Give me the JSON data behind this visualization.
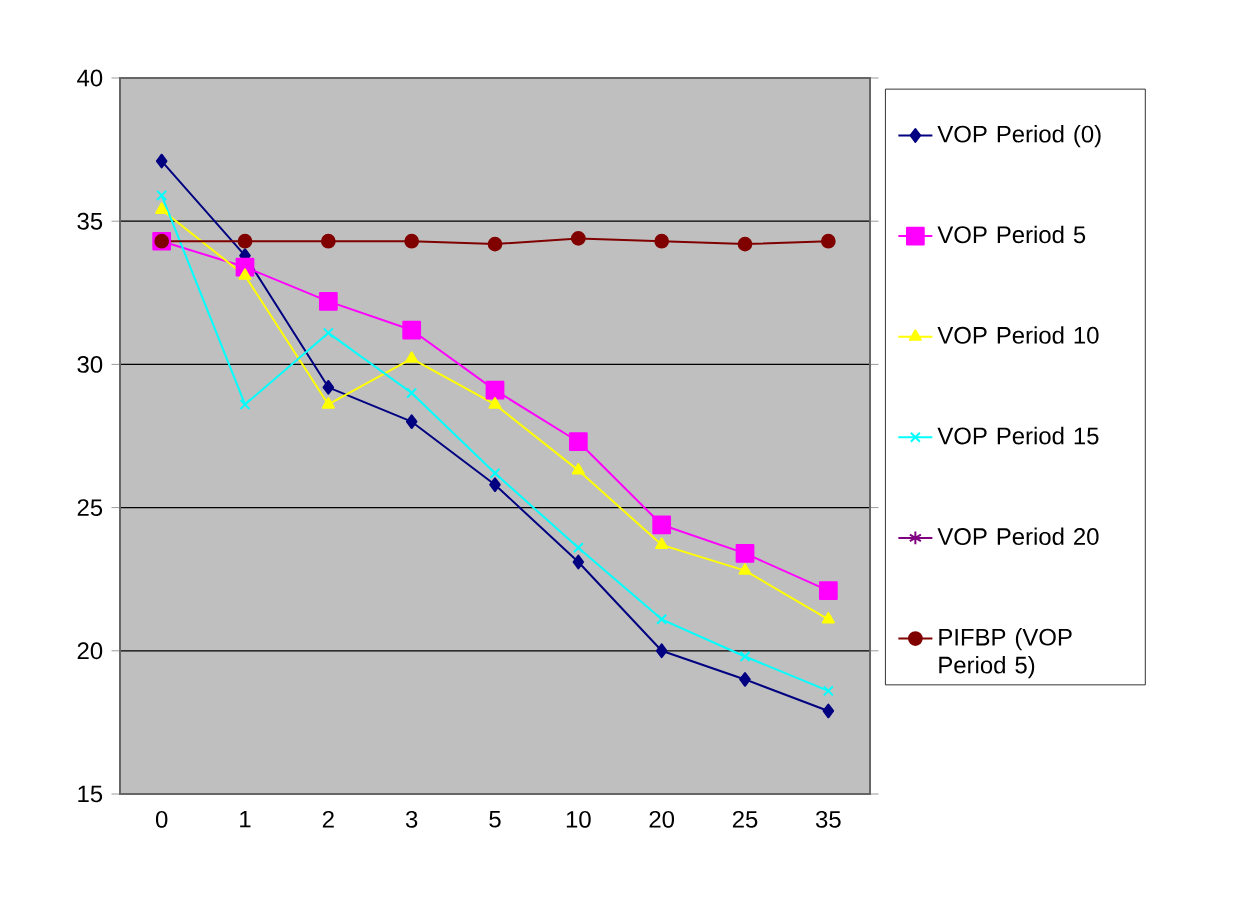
{
  "chart_data": {
    "type": "line",
    "categories": [
      "0",
      "1",
      "2",
      "3",
      "5",
      "10",
      "20",
      "25",
      "35"
    ],
    "series": [
      {
        "name": "VOP Period (0)",
        "color": "#000080",
        "marker": "diamond",
        "values": [
          37.1,
          33.8,
          29.2,
          28.0,
          25.8,
          23.1,
          20.0,
          19.0,
          17.9
        ]
      },
      {
        "name": "VOP Period 5",
        "color": "#ff00ff",
        "marker": "square",
        "values": [
          34.3,
          33.4,
          32.2,
          31.2,
          29.1,
          27.3,
          24.4,
          23.4,
          22.1
        ]
      },
      {
        "name": "VOP Period 10",
        "color": "#ffff00",
        "marker": "triangle",
        "values": [
          35.4,
          33.1,
          28.6,
          30.2,
          28.6,
          26.3,
          23.7,
          22.8,
          21.1
        ]
      },
      {
        "name": "VOP Period 15",
        "color": "#00ffff",
        "marker": "cross",
        "values": [
          35.9,
          28.6,
          31.1,
          29.0,
          26.2,
          23.6,
          21.1,
          19.8,
          18.6
        ]
      },
      {
        "name": "VOP Period 20",
        "color": "#800080",
        "marker": "star",
        "values": [
          null,
          null,
          null,
          null,
          null,
          null,
          null,
          null,
          null
        ]
      },
      {
        "name": "PIFBP (VOP Period 5)",
        "color": "#800000",
        "marker": "circle",
        "values": [
          34.3,
          34.3,
          34.3,
          34.3,
          34.2,
          34.4,
          34.3,
          34.2,
          34.3
        ]
      }
    ],
    "ylim": [
      15,
      40
    ],
    "yticks": [
      15,
      20,
      25,
      30,
      35,
      40
    ],
    "grid": "y",
    "legend": "right",
    "line_style": "solid"
  }
}
